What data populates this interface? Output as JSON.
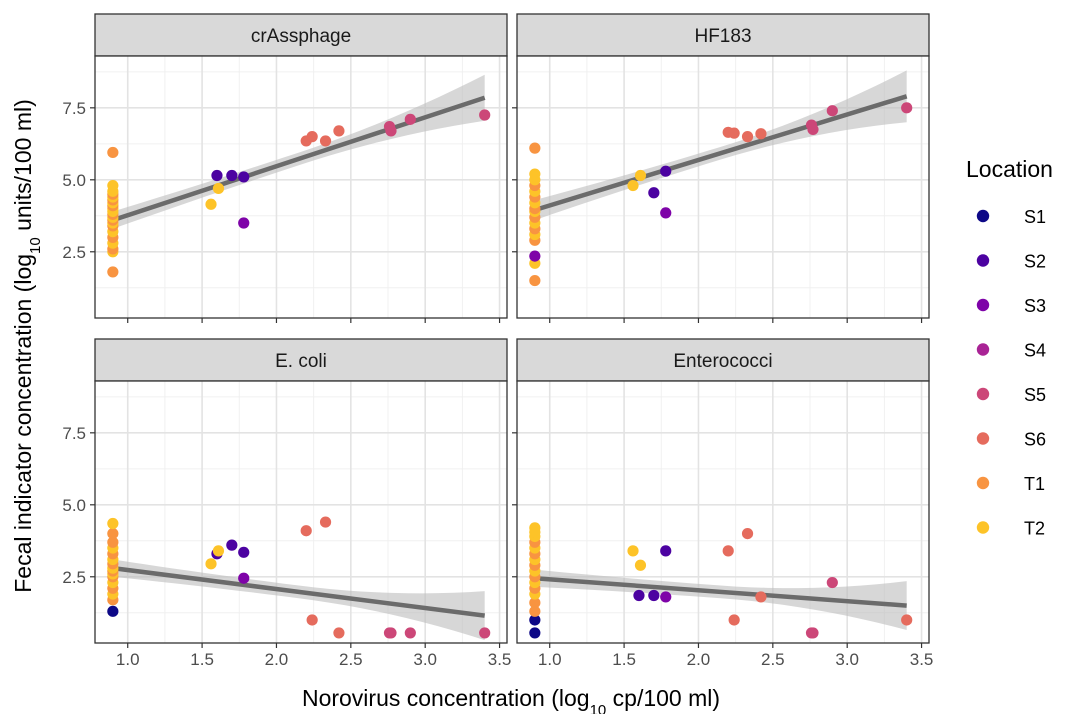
{
  "chart_data": {
    "type": "scatter",
    "xlabel": {
      "prefix": "Norovirus concentration (log",
      "sub": "10",
      "suffix": " cp/100 ml)"
    },
    "ylabel": {
      "prefix": "Fecal indicator concentration (log",
      "sub": "10",
      "suffix": " units/100 ml)"
    },
    "xlim": [
      0.78,
      3.55
    ],
    "ylim": [
      0.2,
      9.3
    ],
    "x_ticks": [
      "1.0",
      "1.5",
      "2.0",
      "2.5",
      "3.0",
      "3.5"
    ],
    "x_tick_values": [
      1.0,
      1.5,
      2.0,
      2.5,
      3.0,
      3.5
    ],
    "y_ticks": [
      "2.5",
      "5.0",
      "7.5"
    ],
    "y_tick_values": [
      2.5,
      5.0,
      7.5
    ],
    "grid": true,
    "legend": {
      "title": "Location",
      "position": "right",
      "entries": [
        {
          "label": "S1",
          "color": "#0D0887"
        },
        {
          "label": "S2",
          "color": "#4C02A1"
        },
        {
          "label": "S3",
          "color": "#7E03A8"
        },
        {
          "label": "S4",
          "color": "#A92395"
        },
        {
          "label": "S5",
          "color": "#CC4778"
        },
        {
          "label": "S6",
          "color": "#E56B5D"
        },
        {
          "label": "T1",
          "color": "#F89441"
        },
        {
          "label": "T2",
          "color": "#FDC328"
        }
      ]
    },
    "panels": [
      {
        "title": "crAssphage",
        "fit": {
          "x0": 0.9,
          "y0": 3.6,
          "x1": 3.4,
          "y1": 7.85,
          "band_left": 0.3,
          "band_right": 0.8
        },
        "points": [
          [
            0.9,
            1.8,
            "T1"
          ],
          [
            0.9,
            2.5,
            "T2"
          ],
          [
            0.9,
            2.6,
            "T1"
          ],
          [
            0.9,
            2.8,
            "T2"
          ],
          [
            0.9,
            3.0,
            "T1"
          ],
          [
            0.9,
            3.2,
            "T2"
          ],
          [
            0.9,
            3.4,
            "T1"
          ],
          [
            0.9,
            3.5,
            "T2"
          ],
          [
            0.9,
            3.6,
            "T1"
          ],
          [
            0.9,
            3.7,
            "T2"
          ],
          [
            0.9,
            3.8,
            "T1"
          ],
          [
            0.9,
            3.9,
            "T2"
          ],
          [
            0.9,
            4.0,
            "T2"
          ],
          [
            0.9,
            4.1,
            "T1"
          ],
          [
            0.9,
            4.2,
            "T2"
          ],
          [
            0.9,
            4.3,
            "T1"
          ],
          [
            0.9,
            4.4,
            "T2"
          ],
          [
            0.9,
            4.5,
            "T1"
          ],
          [
            0.9,
            4.6,
            "T2"
          ],
          [
            0.9,
            4.8,
            "T2"
          ],
          [
            0.9,
            5.95,
            "T1"
          ],
          [
            1.56,
            4.15,
            "T2"
          ],
          [
            1.61,
            4.7,
            "T2"
          ],
          [
            1.6,
            5.15,
            "S2"
          ],
          [
            1.7,
            5.15,
            "S2"
          ],
          [
            1.78,
            5.1,
            "S2"
          ],
          [
            1.78,
            3.5,
            "S3"
          ],
          [
            2.2,
            6.35,
            "S6"
          ],
          [
            2.24,
            6.5,
            "S6"
          ],
          [
            2.33,
            6.35,
            "S6"
          ],
          [
            2.42,
            6.7,
            "S6"
          ],
          [
            2.76,
            6.85,
            "S5"
          ],
          [
            2.77,
            6.7,
            "S5"
          ],
          [
            2.9,
            7.1,
            "S5"
          ],
          [
            3.4,
            7.25,
            "S5"
          ]
        ]
      },
      {
        "title": "HF183",
        "fit": {
          "x0": 0.9,
          "y0": 3.95,
          "x1": 3.4,
          "y1": 7.9,
          "band_left": 0.35,
          "band_right": 0.9
        },
        "points": [
          [
            0.9,
            1.5,
            "T1"
          ],
          [
            0.9,
            2.1,
            "T2"
          ],
          [
            0.9,
            2.35,
            "S3"
          ],
          [
            0.9,
            2.9,
            "T1"
          ],
          [
            0.9,
            3.1,
            "T2"
          ],
          [
            0.9,
            3.3,
            "T1"
          ],
          [
            0.9,
            3.5,
            "T2"
          ],
          [
            0.9,
            3.7,
            "T1"
          ],
          [
            0.9,
            3.9,
            "T2"
          ],
          [
            0.9,
            4.0,
            "T1"
          ],
          [
            0.9,
            4.2,
            "T2"
          ],
          [
            0.9,
            4.4,
            "T1"
          ],
          [
            0.9,
            4.6,
            "T2"
          ],
          [
            0.9,
            4.8,
            "T1"
          ],
          [
            0.9,
            5.0,
            "T2"
          ],
          [
            0.9,
            5.2,
            "T2"
          ],
          [
            0.9,
            6.1,
            "T1"
          ],
          [
            1.56,
            4.8,
            "T2"
          ],
          [
            1.61,
            5.15,
            "T2"
          ],
          [
            1.7,
            4.55,
            "S2"
          ],
          [
            1.78,
            5.3,
            "S2"
          ],
          [
            1.78,
            3.85,
            "S3"
          ],
          [
            2.2,
            6.65,
            "S6"
          ],
          [
            2.24,
            6.62,
            "S6"
          ],
          [
            2.33,
            6.5,
            "S6"
          ],
          [
            2.42,
            6.6,
            "S6"
          ],
          [
            2.76,
            6.9,
            "S5"
          ],
          [
            2.77,
            6.75,
            "S5"
          ],
          [
            2.9,
            7.4,
            "S5"
          ],
          [
            3.4,
            7.5,
            "S5"
          ]
        ]
      },
      {
        "title": "E. coli",
        "fit": {
          "x0": 0.9,
          "y0": 2.8,
          "x1": 3.4,
          "y1": 1.15,
          "band_left": 0.3,
          "band_right": 0.85
        },
        "points": [
          [
            0.9,
            1.3,
            "S1"
          ],
          [
            0.9,
            1.7,
            "T1"
          ],
          [
            0.9,
            1.9,
            "T2"
          ],
          [
            0.9,
            2.1,
            "T1"
          ],
          [
            0.9,
            2.3,
            "T2"
          ],
          [
            0.9,
            2.5,
            "T1"
          ],
          [
            0.9,
            2.6,
            "T2"
          ],
          [
            0.9,
            2.7,
            "T1"
          ],
          [
            0.9,
            2.8,
            "T2"
          ],
          [
            0.9,
            2.95,
            "T1"
          ],
          [
            0.9,
            3.1,
            "T2"
          ],
          [
            0.9,
            3.3,
            "T1"
          ],
          [
            0.9,
            3.5,
            "T2"
          ],
          [
            0.9,
            3.7,
            "T1"
          ],
          [
            0.9,
            4.0,
            "T1"
          ],
          [
            0.9,
            4.35,
            "T2"
          ],
          [
            1.56,
            2.95,
            "T2"
          ],
          [
            1.6,
            3.3,
            "S2"
          ],
          [
            1.61,
            3.4,
            "T2"
          ],
          [
            1.7,
            3.6,
            "S2"
          ],
          [
            1.78,
            3.35,
            "S2"
          ],
          [
            1.78,
            2.45,
            "S3"
          ],
          [
            2.2,
            4.1,
            "S6"
          ],
          [
            2.24,
            1.0,
            "S6"
          ],
          [
            2.33,
            4.4,
            "S6"
          ],
          [
            2.42,
            0.55,
            "S6"
          ],
          [
            2.76,
            0.55,
            "S5"
          ],
          [
            2.77,
            0.55,
            "S5"
          ],
          [
            2.9,
            0.55,
            "S5"
          ],
          [
            3.4,
            0.55,
            "S5"
          ]
        ]
      },
      {
        "title": "Enterococci",
        "fit": {
          "x0": 0.9,
          "y0": 2.45,
          "x1": 3.4,
          "y1": 1.5,
          "band_left": 0.3,
          "band_right": 0.85
        },
        "points": [
          [
            0.9,
            0.55,
            "S1"
          ],
          [
            0.9,
            1.0,
            "S1"
          ],
          [
            0.9,
            1.3,
            "T1"
          ],
          [
            0.9,
            1.6,
            "T1"
          ],
          [
            0.9,
            1.9,
            "T2"
          ],
          [
            0.9,
            2.1,
            "T1"
          ],
          [
            0.9,
            2.3,
            "T2"
          ],
          [
            0.9,
            2.5,
            "T1"
          ],
          [
            0.9,
            2.7,
            "T2"
          ],
          [
            0.9,
            2.9,
            "T1"
          ],
          [
            0.9,
            3.1,
            "T2"
          ],
          [
            0.9,
            3.3,
            "T1"
          ],
          [
            0.9,
            3.5,
            "T2"
          ],
          [
            0.9,
            3.7,
            "T1"
          ],
          [
            0.9,
            3.9,
            "T2"
          ],
          [
            0.9,
            4.05,
            "T2"
          ],
          [
            0.9,
            4.2,
            "T2"
          ],
          [
            1.56,
            3.4,
            "T2"
          ],
          [
            1.61,
            2.9,
            "T2"
          ],
          [
            1.6,
            1.85,
            "S2"
          ],
          [
            1.7,
            1.85,
            "S2"
          ],
          [
            1.78,
            1.8,
            "S3"
          ],
          [
            1.78,
            3.4,
            "S2"
          ],
          [
            2.2,
            3.4,
            "S6"
          ],
          [
            2.24,
            1.0,
            "S6"
          ],
          [
            2.33,
            4.0,
            "S6"
          ],
          [
            2.42,
            1.8,
            "S6"
          ],
          [
            2.76,
            0.55,
            "S5"
          ],
          [
            2.77,
            0.55,
            "S5"
          ],
          [
            2.9,
            2.3,
            "S5"
          ],
          [
            3.4,
            1.0,
            "S6"
          ]
        ]
      }
    ]
  }
}
